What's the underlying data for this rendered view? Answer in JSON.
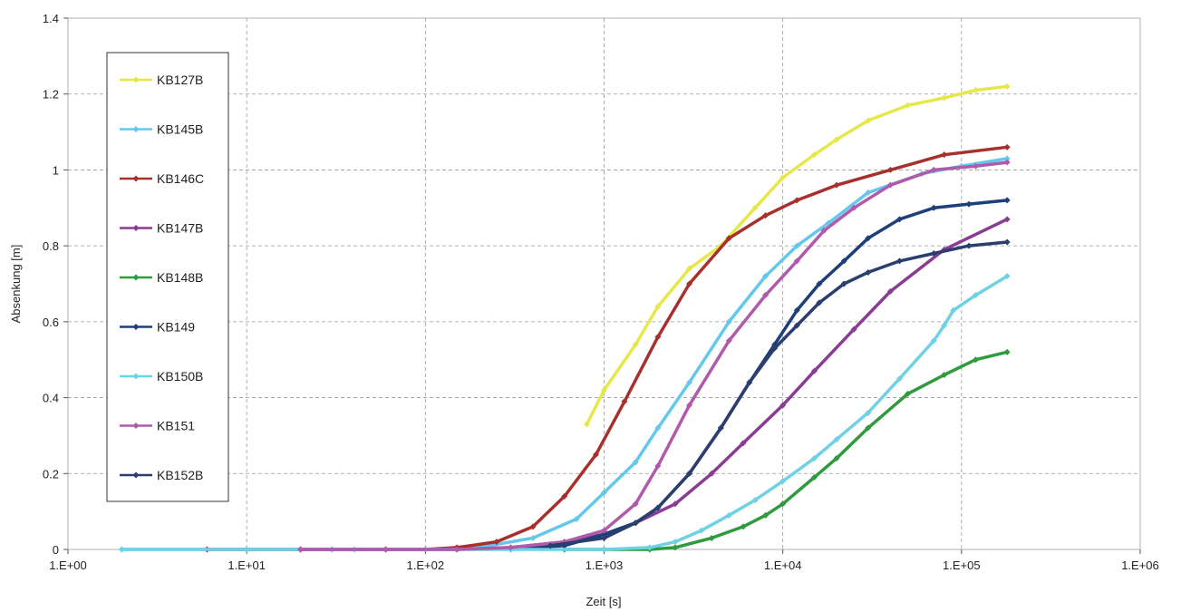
{
  "chart_data": {
    "type": "line",
    "xscale": "log",
    "xlabel": "Zeit [s]",
    "ylabel": "Absenkung [m]",
    "xlim": [
      1,
      1000000
    ],
    "ylim": [
      0,
      1.4
    ],
    "x_ticks": [
      1,
      10,
      100,
      1000,
      10000,
      100000,
      1000000
    ],
    "x_tick_labels": [
      "1.E+00",
      "1.E+01",
      "1.E+02",
      "1.E+03",
      "1.E+04",
      "1.E+05",
      "1.E+06"
    ],
    "y_ticks": [
      0,
      0.2,
      0.4,
      0.6,
      0.8,
      1,
      1.2,
      1.4
    ],
    "y_tick_labels": [
      "0",
      "0.2",
      "0.4",
      "0.6",
      "0.8",
      "1",
      "1.2",
      "1.4"
    ],
    "grid": true,
    "legend_position": "left",
    "series": [
      {
        "name": "KB127B",
        "color": "#e6e84a",
        "x": [
          800,
          1000,
          1500,
          2000,
          3000,
          4500,
          7000,
          10000,
          15000,
          20000,
          30000,
          50000,
          80000,
          120000,
          180000
        ],
        "y": [
          0.33,
          0.42,
          0.54,
          0.64,
          0.74,
          0.8,
          0.9,
          0.98,
          1.04,
          1.08,
          1.13,
          1.17,
          1.19,
          1.21,
          1.22
        ]
      },
      {
        "name": "KB145B",
        "color": "#64c8ec",
        "x": [
          2,
          10,
          30,
          100,
          200,
          400,
          700,
          1000,
          1500,
          2000,
          3000,
          5000,
          8000,
          12000,
          18000,
          30000,
          60000,
          100000,
          180000
        ],
        "y": [
          0,
          0,
          0,
          0,
          0.005,
          0.03,
          0.08,
          0.15,
          0.23,
          0.32,
          0.44,
          0.6,
          0.72,
          0.8,
          0.86,
          0.94,
          0.99,
          1.01,
          1.03
        ]
      },
      {
        "name": "KB146C",
        "color": "#a8302c",
        "x": [
          6,
          20,
          60,
          100,
          150,
          250,
          400,
          600,
          900,
          1300,
          2000,
          3000,
          5000,
          8000,
          12000,
          20000,
          40000,
          80000,
          180000
        ],
        "y": [
          0,
          0,
          0,
          0,
          0.005,
          0.02,
          0.06,
          0.14,
          0.25,
          0.39,
          0.56,
          0.7,
          0.82,
          0.88,
          0.92,
          0.96,
          1.0,
          1.04,
          1.06
        ]
      },
      {
        "name": "KB147B",
        "color": "#8a3c94",
        "x": [
          20,
          60,
          150,
          300,
          600,
          1000,
          1500,
          2500,
          4000,
          6000,
          10000,
          15000,
          25000,
          40000,
          80000,
          180000
        ],
        "y": [
          0,
          0,
          0,
          0.005,
          0.02,
          0.04,
          0.07,
          0.12,
          0.2,
          0.28,
          0.38,
          0.47,
          0.58,
          0.68,
          0.79,
          0.87
        ]
      },
      {
        "name": "KB148B",
        "color": "#2f9a3e",
        "x": [
          600,
          1000,
          1800,
          2500,
          4000,
          6000,
          8000,
          10000,
          15000,
          20000,
          30000,
          50000,
          80000,
          120000,
          180000
        ],
        "y": [
          0,
          0,
          0,
          0.005,
          0.03,
          0.06,
          0.09,
          0.12,
          0.19,
          0.24,
          0.32,
          0.41,
          0.46,
          0.5,
          0.52
        ]
      },
      {
        "name": "KB149",
        "color": "#1e3f7a",
        "x": [
          300,
          600,
          1000,
          1500,
          2000,
          3000,
          4500,
          6500,
          9000,
          12000,
          16000,
          22000,
          30000,
          45000,
          70000,
          110000,
          180000
        ],
        "y": [
          0,
          0.01,
          0.04,
          0.07,
          0.11,
          0.2,
          0.32,
          0.44,
          0.54,
          0.63,
          0.7,
          0.76,
          0.82,
          0.87,
          0.9,
          0.91,
          0.92
        ]
      },
      {
        "name": "KB150B",
        "color": "#6ed2e4",
        "x": [
          2,
          10,
          40,
          100,
          300,
          1000,
          1800,
          2500,
          3500,
          5000,
          7000,
          10000,
          15000,
          20000,
          30000,
          45000,
          70000,
          80000,
          90000,
          120000,
          180000
        ],
        "y": [
          0,
          0,
          0,
          0,
          0,
          0,
          0.005,
          0.02,
          0.05,
          0.09,
          0.13,
          0.18,
          0.24,
          0.29,
          0.36,
          0.45,
          0.55,
          0.59,
          0.63,
          0.67,
          0.72
        ]
      },
      {
        "name": "KB151",
        "color": "#b05aac",
        "x": [
          20,
          60,
          150,
          300,
          600,
          1000,
          1500,
          2000,
          3000,
          5000,
          8000,
          12000,
          17000,
          25000,
          40000,
          70000,
          120000,
          180000
        ],
        "y": [
          0,
          0,
          0,
          0.005,
          0.02,
          0.05,
          0.12,
          0.22,
          0.38,
          0.55,
          0.67,
          0.76,
          0.84,
          0.9,
          0.96,
          1.0,
          1.01,
          1.02
        ]
      },
      {
        "name": "KB152B",
        "color": "#2a3f6e",
        "x": [
          500,
          1000,
          1500,
          2000,
          3000,
          4500,
          6500,
          9000,
          12000,
          16000,
          22000,
          30000,
          45000,
          70000,
          110000,
          180000
        ],
        "y": [
          0.01,
          0.03,
          0.07,
          0.11,
          0.2,
          0.32,
          0.44,
          0.53,
          0.59,
          0.65,
          0.7,
          0.73,
          0.76,
          0.78,
          0.8,
          0.81
        ]
      }
    ]
  }
}
